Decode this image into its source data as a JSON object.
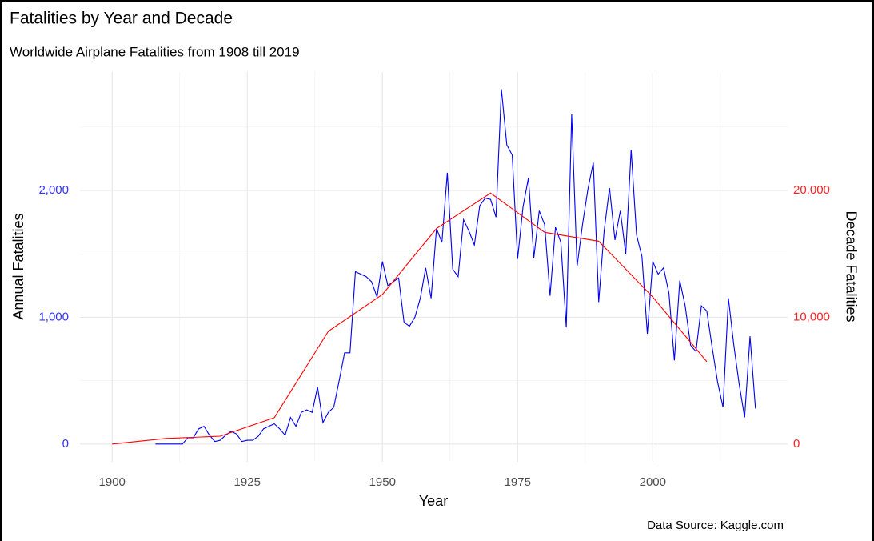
{
  "chart_data": {
    "type": "line",
    "title": "Fatalities by Year and Decade",
    "subtitle": "Worldwide Airplane Fatalities from 1908 till 2019",
    "x_label": "Year",
    "y_label": "Annual Fatalities",
    "y2_label": "Decade Fatalities",
    "caption": "Data Source: Kaggle.com",
    "xlim": [
      1894.05,
      2024.95
    ],
    "xticks": [
      1900,
      1925,
      1950,
      1975,
      2000
    ],
    "x_minor_grid": [
      1912.5,
      1937.5,
      1962.5,
      1987.5,
      2012.5
    ],
    "ylim": [
      -140,
      2935
    ],
    "yticks": [
      0,
      {
        "value": 1000,
        "label": "1,000"
      },
      {
        "value": 2000,
        "label": "2,000"
      }
    ],
    "y_minor_grid": [
      500,
      1500,
      2500
    ],
    "y2lim": [
      -1400,
      29350
    ],
    "y2ticks": [
      0,
      {
        "value": 10000,
        "label": "10,000"
      },
      {
        "value": 20000,
        "label": "20,000"
      }
    ],
    "y_color": "#3333ff",
    "y2_color": "#ff2222",
    "grid": true,
    "series": [
      {
        "color": "#0000ee",
        "axis": "y",
        "x": [
          1908,
          1909,
          1910,
          1911,
          1912,
          1913,
          1914,
          1915,
          1916,
          1917,
          1918,
          1919,
          1920,
          1921,
          1922,
          1923,
          1924,
          1925,
          1926,
          1927,
          1928,
          1929,
          1930,
          1931,
          1932,
          1933,
          1934,
          1935,
          1936,
          1937,
          1938,
          1939,
          1940,
          1941,
          1942,
          1943,
          1944,
          1945,
          1946,
          1947,
          1948,
          1949,
          1950,
          1951,
          1952,
          1953,
          1954,
          1955,
          1956,
          1957,
          1958,
          1959,
          1960,
          1961,
          1962,
          1963,
          1964,
          1965,
          1966,
          1967,
          1968,
          1969,
          1970,
          1971,
          1972,
          1973,
          1974,
          1975,
          1976,
          1977,
          1978,
          1979,
          1980,
          1981,
          1982,
          1983,
          1984,
          1985,
          1986,
          1987,
          1988,
          1989,
          1990,
          1991,
          1992,
          1993,
          1994,
          1995,
          1996,
          1997,
          1998,
          1999,
          2000,
          2001,
          2002,
          2003,
          2004,
          2005,
          2006,
          2007,
          2008,
          2009,
          2010,
          2011,
          2012,
          2013,
          2014,
          2015,
          2016,
          2017,
          2018,
          2019
        ],
        "values": [
          0,
          0,
          0,
          0,
          0,
          0,
          50,
          50,
          120,
          140,
          70,
          20,
          30,
          70,
          100,
          80,
          20,
          30,
          30,
          60,
          120,
          140,
          160,
          120,
          70,
          210,
          140,
          250,
          270,
          250,
          450,
          170,
          250,
          290,
          500,
          720,
          720,
          1360,
          1340,
          1320,
          1280,
          1160,
          1440,
          1250,
          1280,
          1310,
          960,
          930,
          1000,
          1150,
          1390,
          1150,
          1700,
          1590,
          2140,
          1380,
          1320,
          1770,
          1680,
          1570,
          1880,
          1940,
          1930,
          1790,
          2800,
          2360,
          2280,
          1460,
          1870,
          2100,
          1470,
          1840,
          1730,
          1170,
          1710,
          1590,
          920,
          2600,
          1400,
          1730,
          2010,
          2220,
          1120,
          1680,
          2020,
          1610,
          1840,
          1500,
          2320,
          1650,
          1480,
          870,
          1440,
          1340,
          1390,
          1190,
          660,
          1290,
          1090,
          780,
          730,
          1090,
          1050,
          760,
          490,
          290,
          1150,
          780,
          470,
          210,
          850,
          280
        ]
      },
      {
        "color": "#ff0000",
        "axis": "y2",
        "x": [
          1900,
          1910,
          1920,
          1930,
          1940,
          1950,
          1960,
          1970,
          1980,
          1990,
          2000,
          2010
        ],
        "values": [
          0,
          440,
          620,
          2080,
          8900,
          11800,
          17000,
          19800,
          16700,
          16000,
          11600,
          6500
        ]
      }
    ]
  }
}
